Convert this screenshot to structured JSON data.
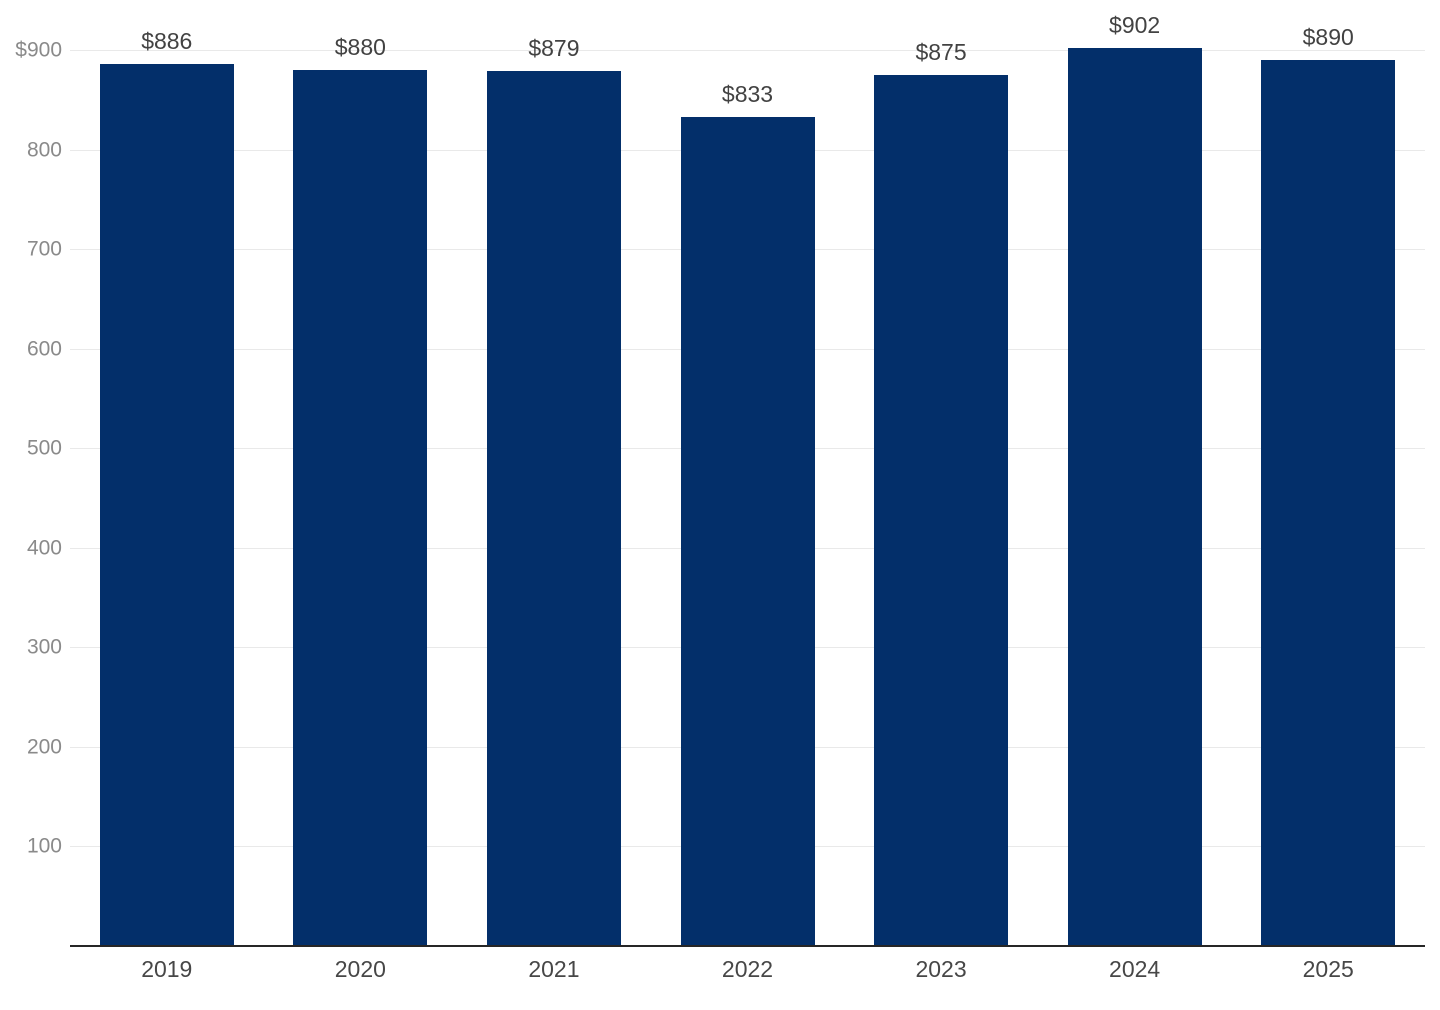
{
  "chart_data": {
    "type": "bar",
    "title": "",
    "xlabel": "",
    "ylabel": "",
    "categories": [
      "2019",
      "2020",
      "2021",
      "2022",
      "2023",
      "2024",
      "2025"
    ],
    "values": [
      886,
      880,
      879,
      833,
      875,
      902,
      890
    ],
    "value_labels": [
      "$886",
      "$880",
      "$879",
      "$833",
      "$875",
      "$902",
      "$890"
    ],
    "y_ticks": [
      {
        "value": 100,
        "label": "100"
      },
      {
        "value": 200,
        "label": "200"
      },
      {
        "value": 300,
        "label": "300"
      },
      {
        "value": 400,
        "label": "400"
      },
      {
        "value": 500,
        "label": "500"
      },
      {
        "value": 600,
        "label": "600"
      },
      {
        "value": 700,
        "label": "700"
      },
      {
        "value": 800,
        "label": "800"
      },
      {
        "value": 900,
        "label": "$900"
      }
    ],
    "ylim": [
      0,
      905
    ],
    "grid": true,
    "legend": null,
    "colors": {
      "bar": "#032f6a",
      "gridline": "#e9e9e9",
      "tick_label": "#8a8a8a",
      "value_label": "#424242",
      "x_label": "#474747",
      "axis_line": "#262626",
      "background": "#ffffff"
    }
  }
}
